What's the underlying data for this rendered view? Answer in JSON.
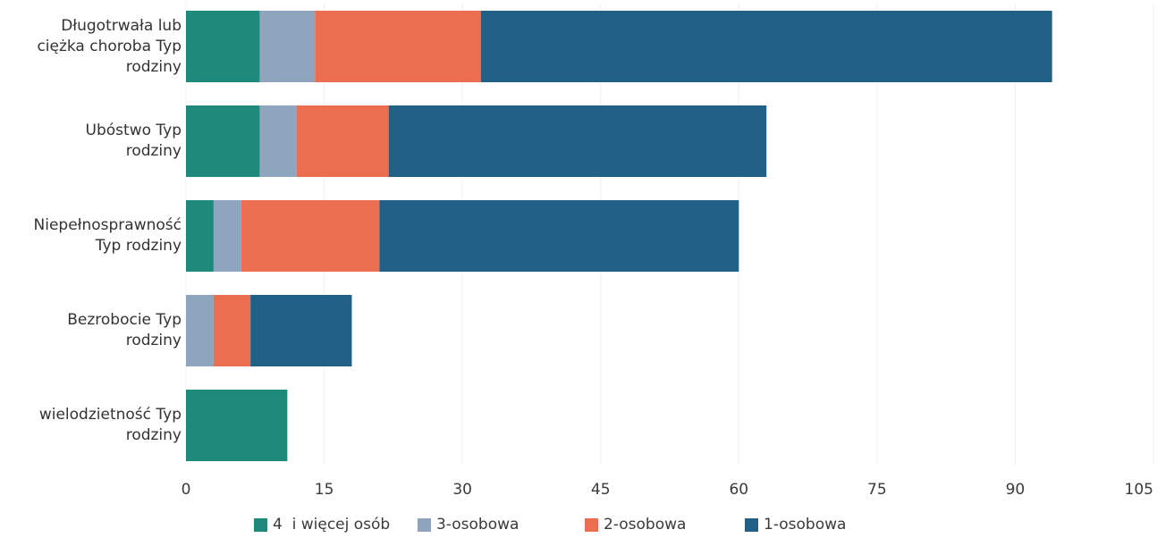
{
  "chart_data": {
    "type": "bar",
    "orientation": "horizontal",
    "stacked": true,
    "categories": [
      "Długotrwała lub\nciężka choroba Typ\nrodziny",
      "Ubóstwo Typ\nrodziny",
      "Niepełnosprawność\nTyp rodziny",
      "Bezrobocie Typ\nrodziny",
      "wielodzietność Typ\nrodziny"
    ],
    "series": [
      {
        "name": "4  i więcej osób",
        "color": "#1f8a7c",
        "values": [
          8,
          8,
          3,
          0,
          11
        ]
      },
      {
        "name": "3-osobowa",
        "color": "#8fa5bd",
        "values": [
          6,
          4,
          3,
          3,
          0
        ]
      },
      {
        "name": "2-osobowa",
        "color": "#ea6e4f",
        "values": [
          18,
          10,
          15,
          4,
          0
        ]
      },
      {
        "name": "1-osobowa",
        "color": "#226187",
        "values": [
          62,
          41,
          39,
          11,
          0
        ]
      }
    ],
    "x_ticks": [
      0,
      15,
      30,
      45,
      60,
      75,
      90,
      105
    ],
    "xlim": [
      0,
      105
    ],
    "grid": true,
    "legend_position": "bottom"
  }
}
